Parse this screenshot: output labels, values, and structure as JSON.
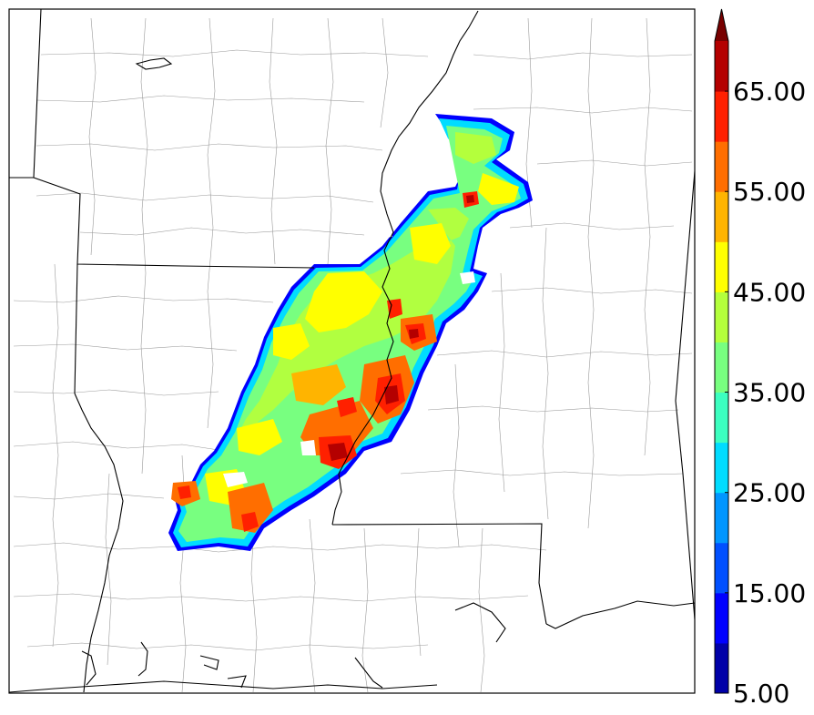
{
  "map": {
    "boundaries": {
      "county_line_color": "#9a9a9a",
      "state_line_color": "#000000",
      "coast_color": "#000000"
    }
  },
  "colorbar": {
    "extend": "max",
    "labels": [
      "5.00",
      "15.00",
      "25.00",
      "35.00",
      "45.00",
      "55.00",
      "65.00"
    ],
    "levels": [
      5,
      10,
      15,
      20,
      25,
      30,
      35,
      40,
      45,
      50,
      55,
      60,
      65,
      70
    ],
    "colors": [
      "#0000a8",
      "#0000ff",
      "#0050ff",
      "#0096ff",
      "#00dcff",
      "#3cffc0",
      "#78ff80",
      "#b4ff3c",
      "#ffff00",
      "#ffb400",
      "#ff6e00",
      "#ff2000",
      "#b40000",
      "#780000"
    ]
  }
}
